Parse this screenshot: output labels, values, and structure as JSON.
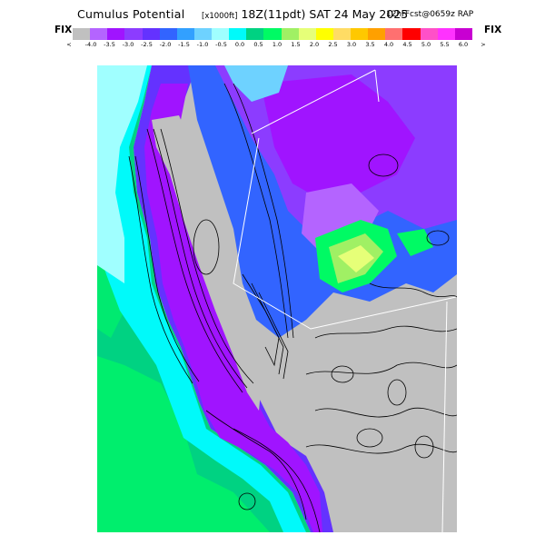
{
  "header": {
    "title": "Cumulus Potential",
    "units": "[x1000ft]",
    "valid_time": "18Z(11pdt) SAT 24 May 2025",
    "forecast_info": "12hrFcst@0659z RAP"
  },
  "colorbar": {
    "left_label": "FIX",
    "right_label": "FIX",
    "left_arrow": "<",
    "right_arrow": ">",
    "colors": [
      "#c0c0c0",
      "#b464ff",
      "#a014ff",
      "#8c3cff",
      "#6432ff",
      "#3264ff",
      "#32a0ff",
      "#6ed2ff",
      "#a0ffff",
      "#00fafa",
      "#00d282",
      "#00fa64",
      "#a0f064",
      "#e6ff78",
      "#ffff00",
      "#ffdc64",
      "#ffc800",
      "#ffa000",
      "#ff7070",
      "#ff0000",
      "#ff50c8",
      "#ff32ff",
      "#c800d2"
    ],
    "tick_labels": [
      "-4.0",
      "-3.5",
      "-3.0",
      "-2.5",
      "-2.0",
      "-1.5",
      "-1.0",
      "-0.5",
      "0.0",
      "0.5",
      "1.0",
      "1.5",
      "2.0",
      "2.5",
      "3.0",
      "3.5",
      "4.0",
      "4.5",
      "5.0",
      "5.5",
      "6.0"
    ]
  }
}
